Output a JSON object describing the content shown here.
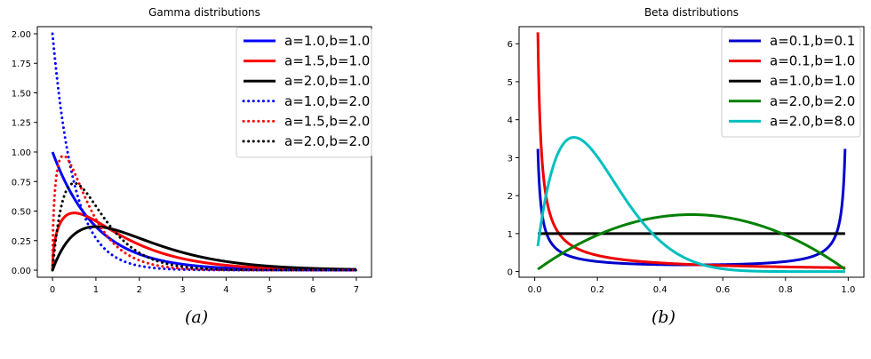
{
  "chart_data": [
    {
      "type": "line",
      "title": "Gamma distributions",
      "xlabel": "",
      "ylabel": "",
      "xlim": [
        0,
        7
      ],
      "ylim": [
        0,
        2.0
      ],
      "xticks": [
        "0",
        "1",
        "2",
        "3",
        "4",
        "5",
        "6",
        "7"
      ],
      "yticks": [
        "0.00",
        "0.25",
        "0.50",
        "0.75",
        "1.00",
        "1.25",
        "1.50",
        "1.75",
        "2.00"
      ],
      "grid": false,
      "legend_position": "top-right",
      "series": [
        {
          "name": "a=1.0,b=1.0",
          "color": "#0000ff",
          "style": "solid",
          "a": 1.0,
          "b": 1.0
        },
        {
          "name": "a=1.5,b=1.0",
          "color": "#ff0000",
          "style": "solid",
          "a": 1.5,
          "b": 1.0
        },
        {
          "name": "a=2.0,b=1.0",
          "color": "#000000",
          "style": "solid",
          "a": 2.0,
          "b": 1.0
        },
        {
          "name": "a=1.0,b=2.0",
          "color": "#0000ff",
          "style": "dotted",
          "a": 1.0,
          "b": 2.0
        },
        {
          "name": "a=1.5,b=2.0",
          "color": "#ff0000",
          "style": "dotted",
          "a": 1.5,
          "b": 2.0
        },
        {
          "name": "a=2.0,b=2.0",
          "color": "#000000",
          "style": "dotted",
          "a": 2.0,
          "b": 2.0
        }
      ]
    },
    {
      "type": "line",
      "title": "Beta distributions",
      "xlabel": "",
      "ylabel": "",
      "xlim": [
        0,
        1
      ],
      "ylim": [
        0,
        6.3
      ],
      "xticks": [
        "0.0",
        "0.2",
        "0.4",
        "0.6",
        "0.8",
        "1.0"
      ],
      "yticks": [
        "0",
        "1",
        "2",
        "3",
        "4",
        "5",
        "6"
      ],
      "grid": false,
      "legend_position": "top-right",
      "series": [
        {
          "name": "a=0.1,b=0.1",
          "color": "#0000cc",
          "style": "solid",
          "a": 0.1,
          "b": 0.1
        },
        {
          "name": "a=0.1,b=1.0",
          "color": "#ee0000",
          "style": "solid",
          "a": 0.1,
          "b": 1.0
        },
        {
          "name": "a=1.0,b=1.0",
          "color": "#000000",
          "style": "solid",
          "a": 1.0,
          "b": 1.0
        },
        {
          "name": "a=2.0,b=2.0",
          "color": "#008000",
          "style": "solid",
          "a": 2.0,
          "b": 2.0
        },
        {
          "name": "a=2.0,b=8.0",
          "color": "#00bfbf",
          "style": "solid",
          "a": 2.0,
          "b": 8.0
        }
      ]
    }
  ],
  "captions": [
    "(a)",
    "(b)"
  ]
}
